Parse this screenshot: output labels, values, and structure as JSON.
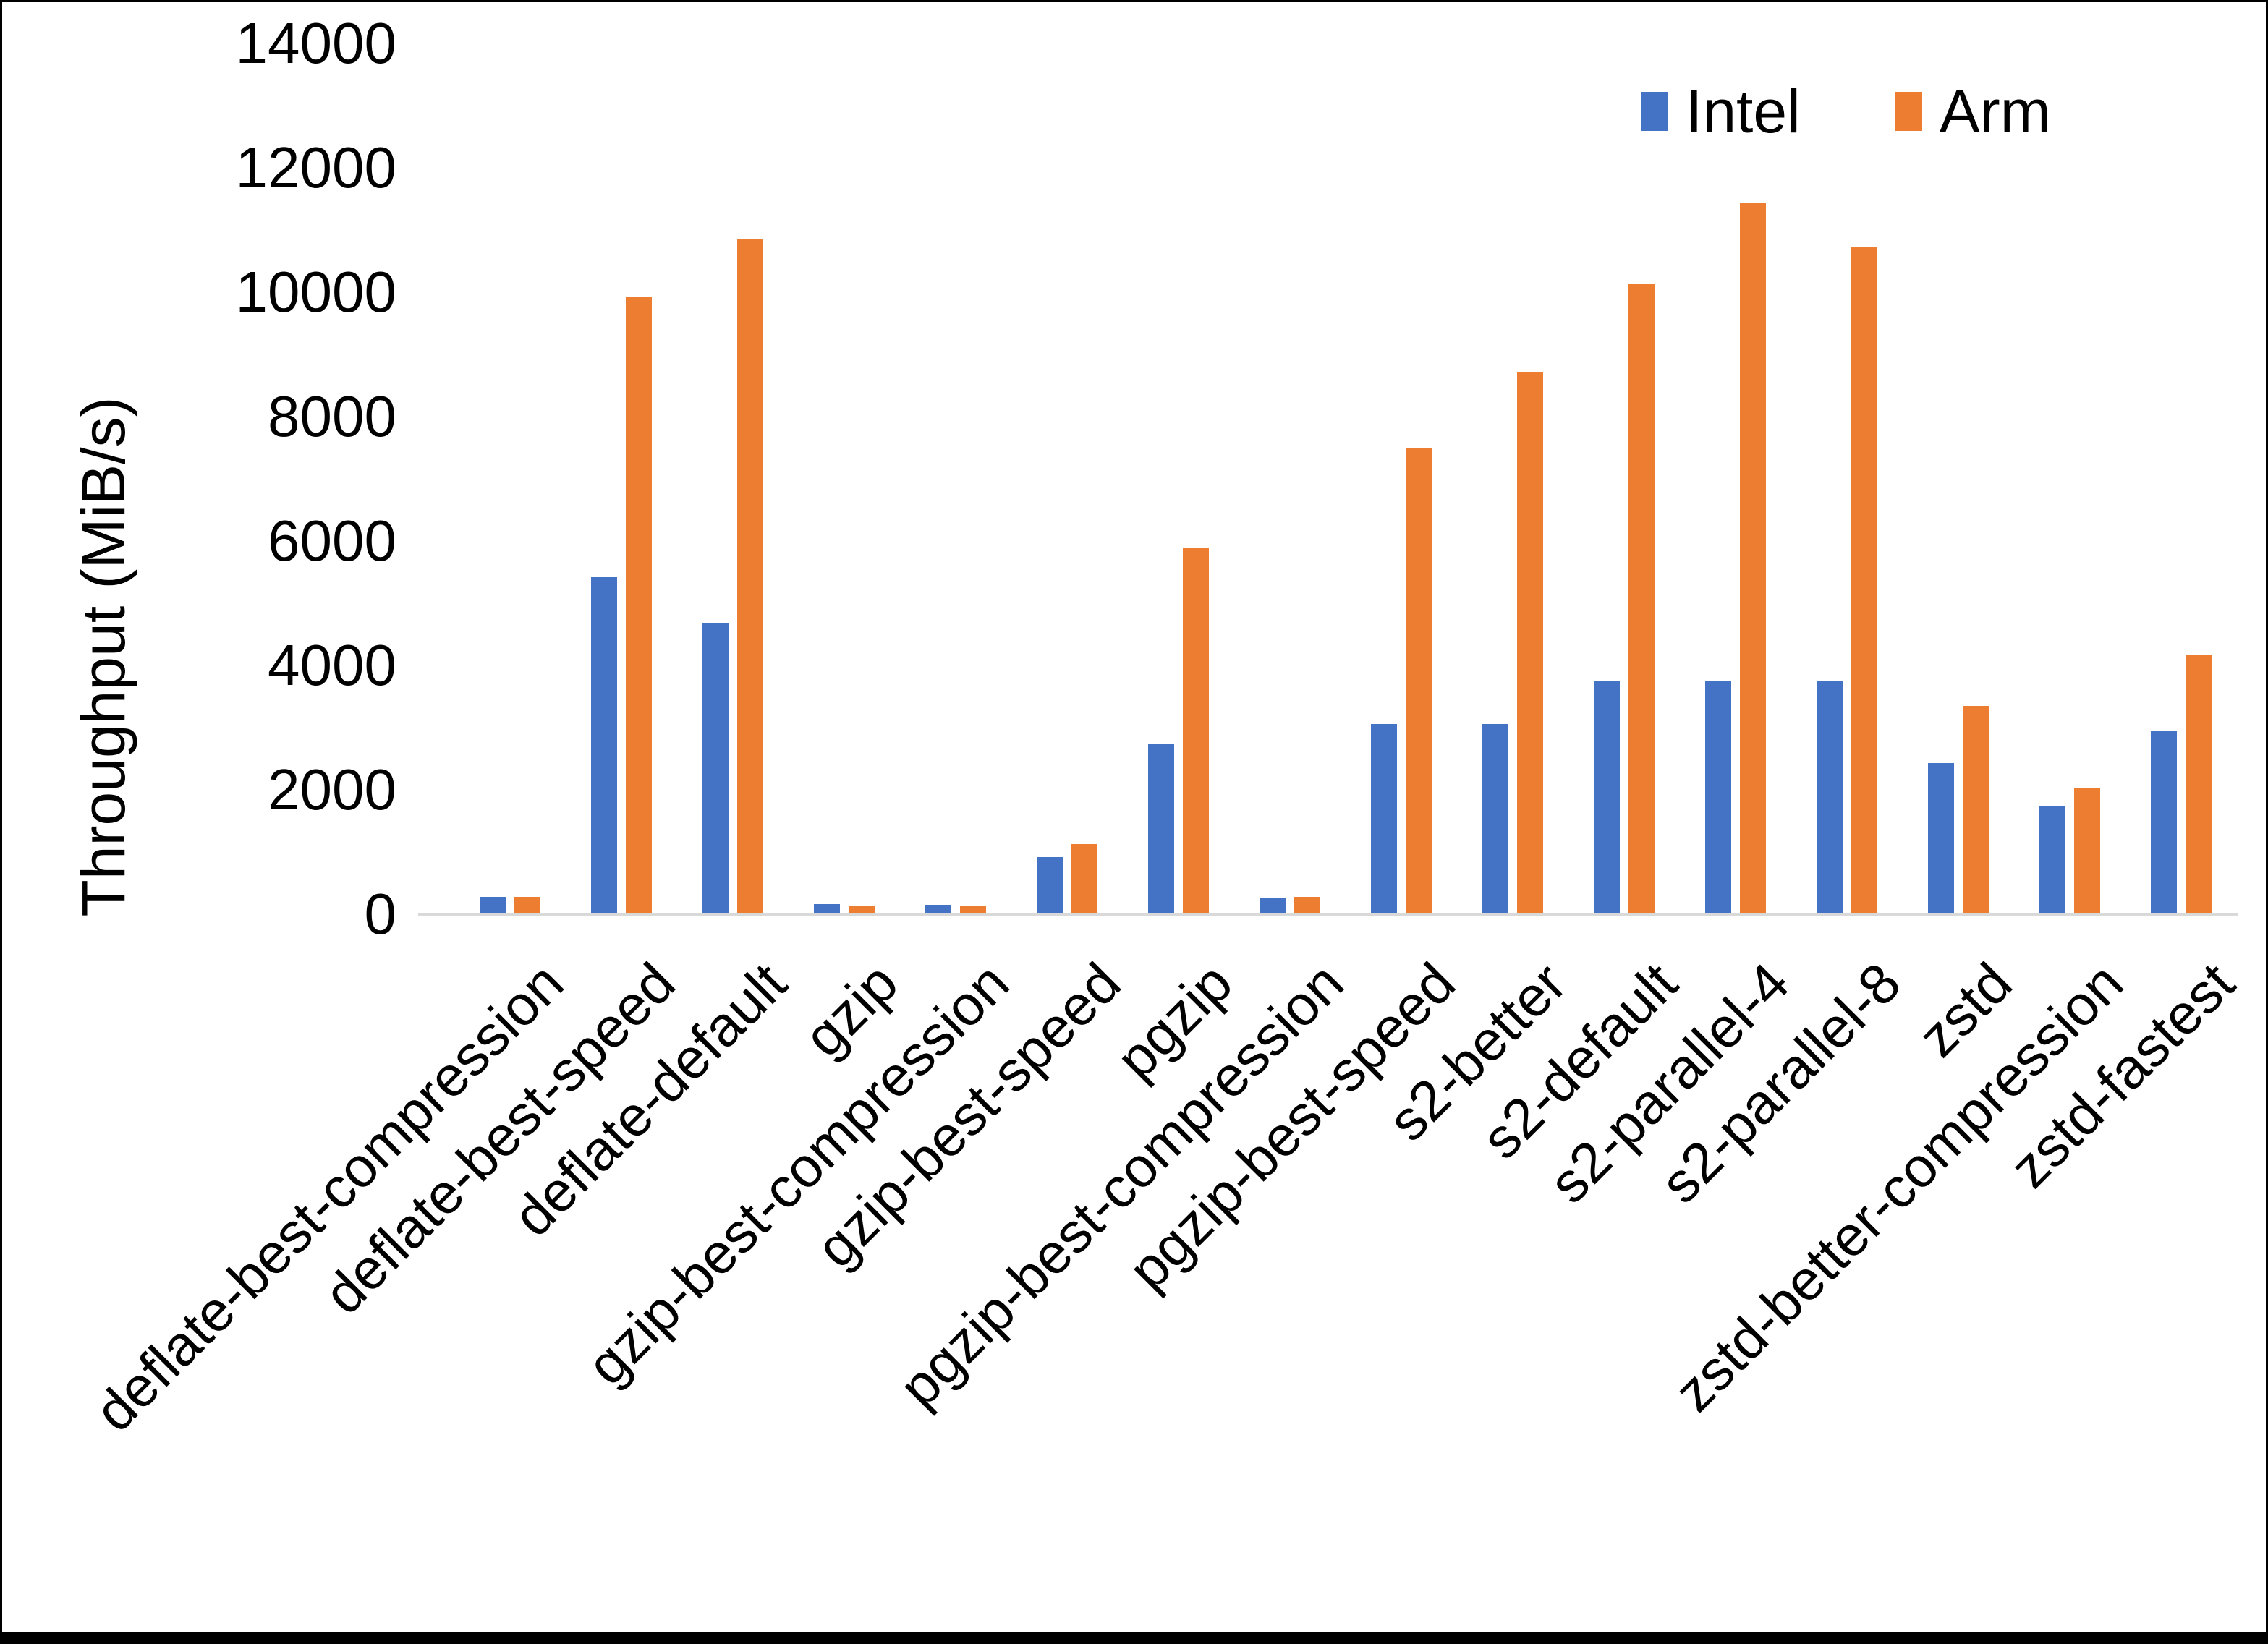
{
  "window": {
    "background": "#ffffff",
    "border_color": "#000000"
  },
  "legend": {
    "position": "top-right",
    "items": [
      {
        "label": "Intel",
        "color": "#4472C4"
      },
      {
        "label": "Arm",
        "color": "#ED7D31"
      }
    ]
  },
  "colors": {
    "axis_line": "#d9d9d9",
    "text": "#000000",
    "intel_blue": "#4472C4",
    "arm_orange": "#ED7D31"
  },
  "chart_data": {
    "type": "bar",
    "title": "",
    "xlabel": "",
    "ylabel": "Throughput (MiB/s)",
    "ylim": [
      0,
      14000
    ],
    "yticks": [
      0,
      2000,
      4000,
      6000,
      8000,
      10000,
      12000,
      14000
    ],
    "grid": false,
    "legend_position": "top-right",
    "categories": [
      "deflate-best-compression",
      "deflate-best-speed",
      "deflate-default",
      "gzip",
      "gzip-best-compression",
      "gzip-best-speed",
      "pgzip",
      "pgzip-best-compression",
      "pgzip-best-speed",
      "s2-better",
      "s2-default",
      "s2-parallel-4",
      "s2-parallel-8",
      "zstd",
      "zstd-better-compression",
      "zstd-fastest"
    ],
    "series": [
      {
        "name": "Intel",
        "color": "#4472C4",
        "values": [
          250,
          5400,
          4650,
          140,
          130,
          890,
          2715,
          230,
          3030,
          3030,
          3720,
          3720,
          3730,
          2410,
          1710,
          2925
        ]
      },
      {
        "name": "Arm",
        "color": "#ED7D31",
        "values": [
          255,
          9900,
          10820,
          110,
          115,
          1110,
          5860,
          250,
          7480,
          8690,
          10100,
          11420,
          10710,
          3330,
          2000,
          4145
        ]
      }
    ]
  }
}
